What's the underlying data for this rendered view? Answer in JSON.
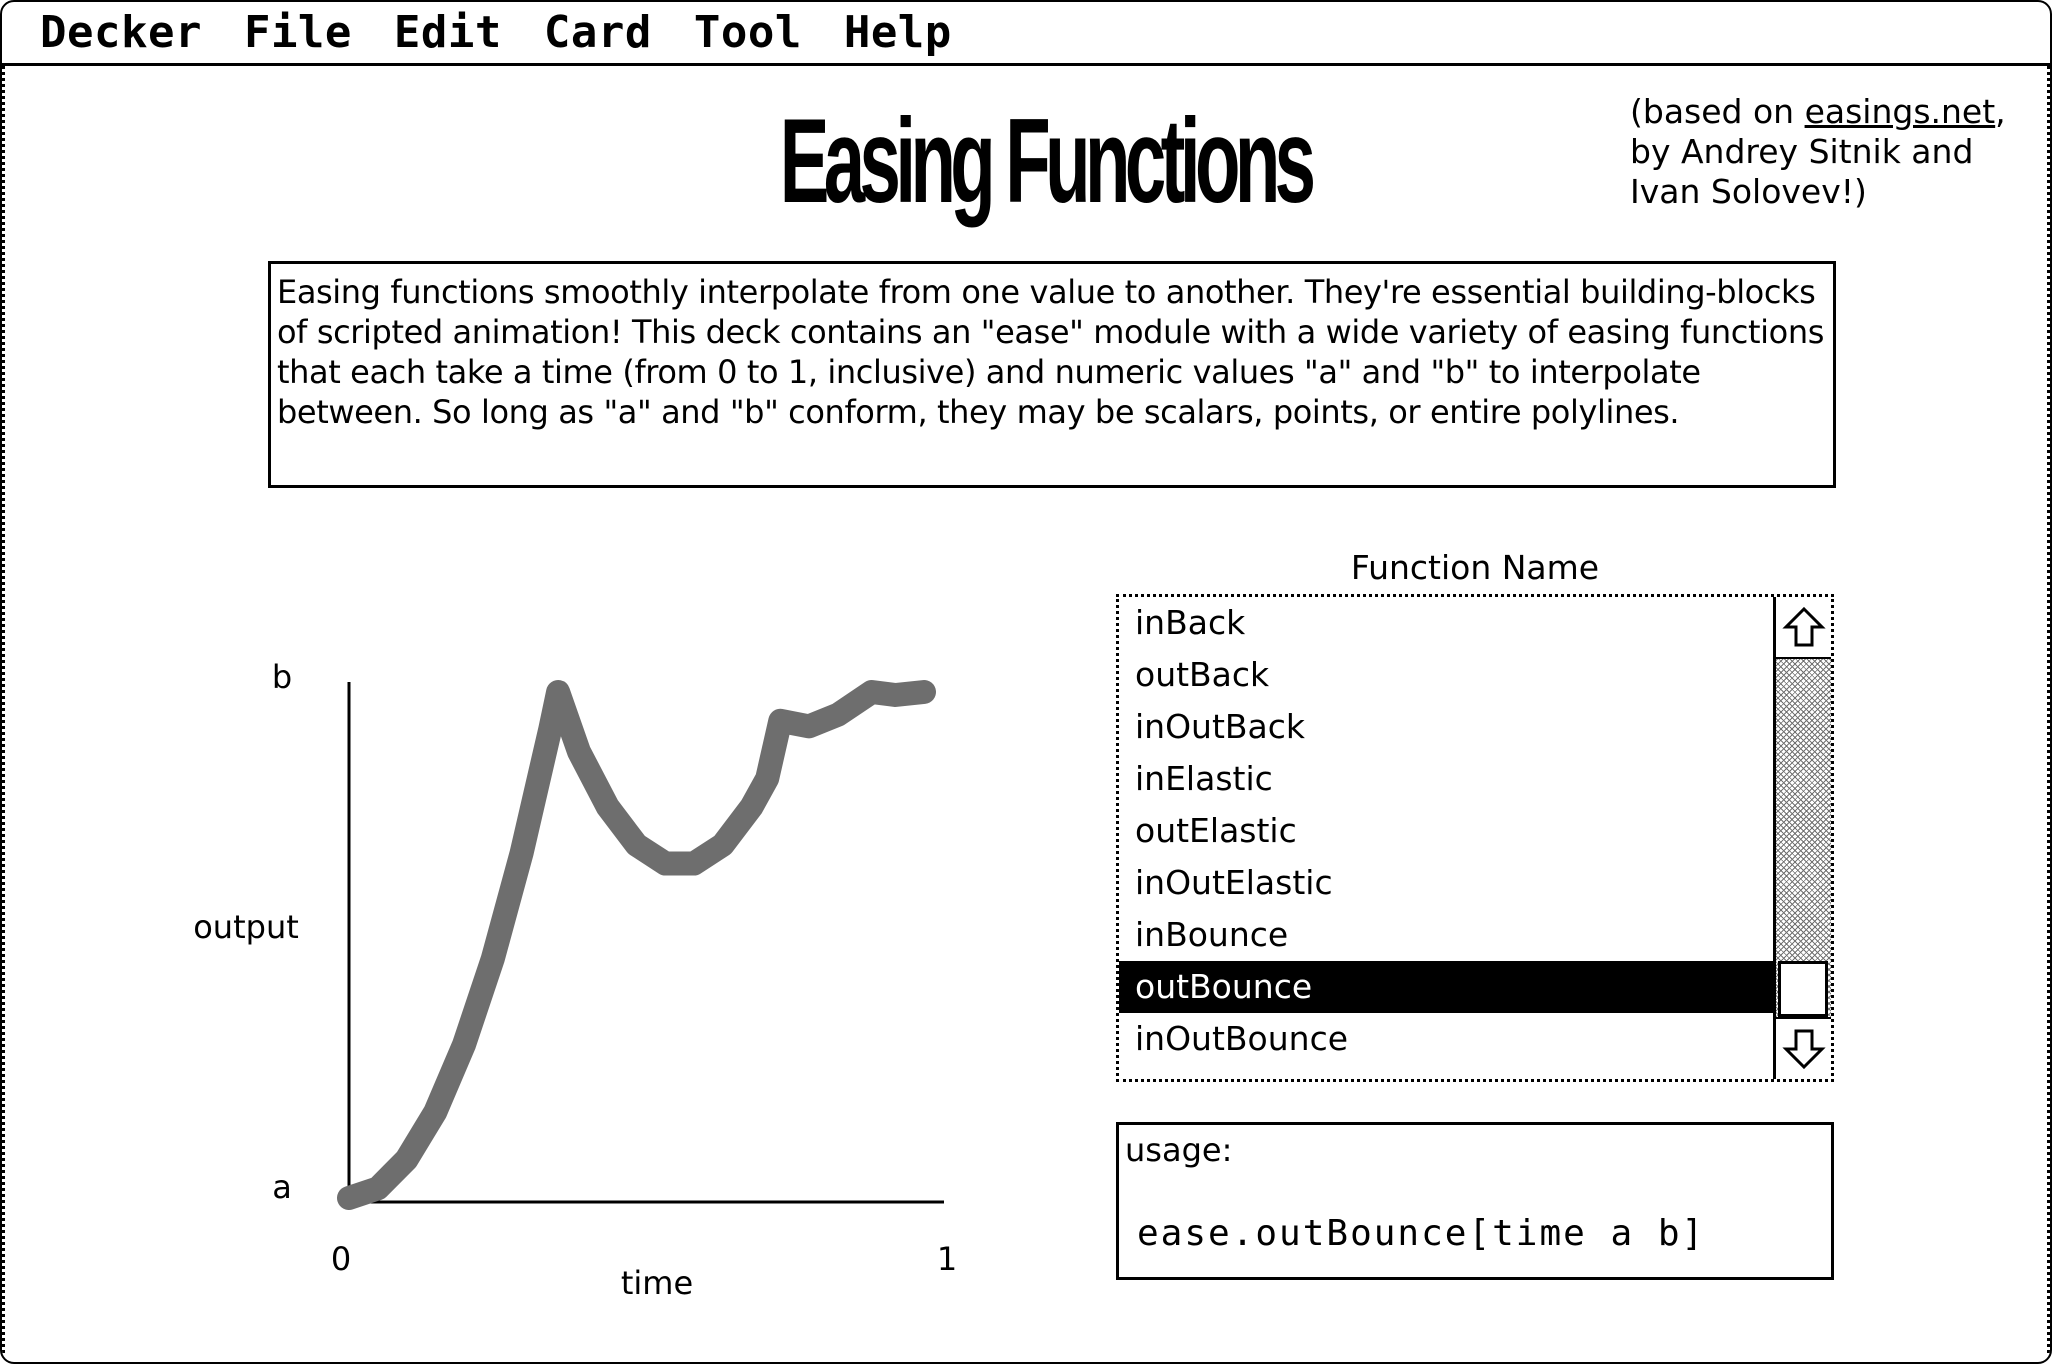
{
  "menubar": {
    "items": [
      "Decker",
      "File",
      "Edit",
      "Card",
      "Tool",
      "Help"
    ]
  },
  "card": {
    "title": "Easing Functions",
    "credit_prefix": "(based on ",
    "credit_link": "easings.net",
    "credit_line1_suffix": ",",
    "credit_line2": "by Andrey Sitnik and",
    "credit_line3": "Ivan Solovev!)",
    "description": "Easing functions smoothly interpolate from one value to another. They're essential building-blocks of scripted animation! This deck contains an \"ease\" module with a wide variety of easing functions that each take a time (from 0 to 1, inclusive) and numeric values \"a\" and \"b\" to interpolate between. So long as \"a\" and \"b\" conform, they may be scalars, points, or entire polylines."
  },
  "chart_data": {
    "type": "line",
    "function": "outBounce",
    "xlabel": "time",
    "ylabel": "output",
    "x_ticks": [
      "0",
      "1"
    ],
    "y_ticks": [
      "a",
      "b"
    ],
    "xlim": [
      0,
      1
    ],
    "ylim": [
      0,
      1
    ],
    "x": [
      0,
      0.05,
      0.1,
      0.15,
      0.2,
      0.25,
      0.3,
      0.35,
      0.3636,
      0.4,
      0.45,
      0.5,
      0.55,
      0.6,
      0.65,
      0.7,
      0.7273,
      0.75,
      0.8,
      0.85,
      0.9,
      0.9091,
      0.95,
      1.0
    ],
    "y": [
      0,
      0.019,
      0.076,
      0.17,
      0.303,
      0.473,
      0.681,
      0.927,
      1.0,
      0.882,
      0.773,
      0.698,
      0.661,
      0.661,
      0.698,
      0.773,
      0.829,
      0.943,
      0.932,
      0.955,
      0.993,
      1.0,
      0.994,
      1.0
    ],
    "line_color": "#6e6e6e"
  },
  "list": {
    "title": "Function Name",
    "items": [
      "inBack",
      "outBack",
      "inOutBack",
      "inElastic",
      "outElastic",
      "inOutElastic",
      "inBounce",
      "outBounce",
      "inOutBounce"
    ],
    "selected": "outBounce"
  },
  "usage": {
    "label": "usage:",
    "code": "ease.outBounce[time a b]"
  }
}
